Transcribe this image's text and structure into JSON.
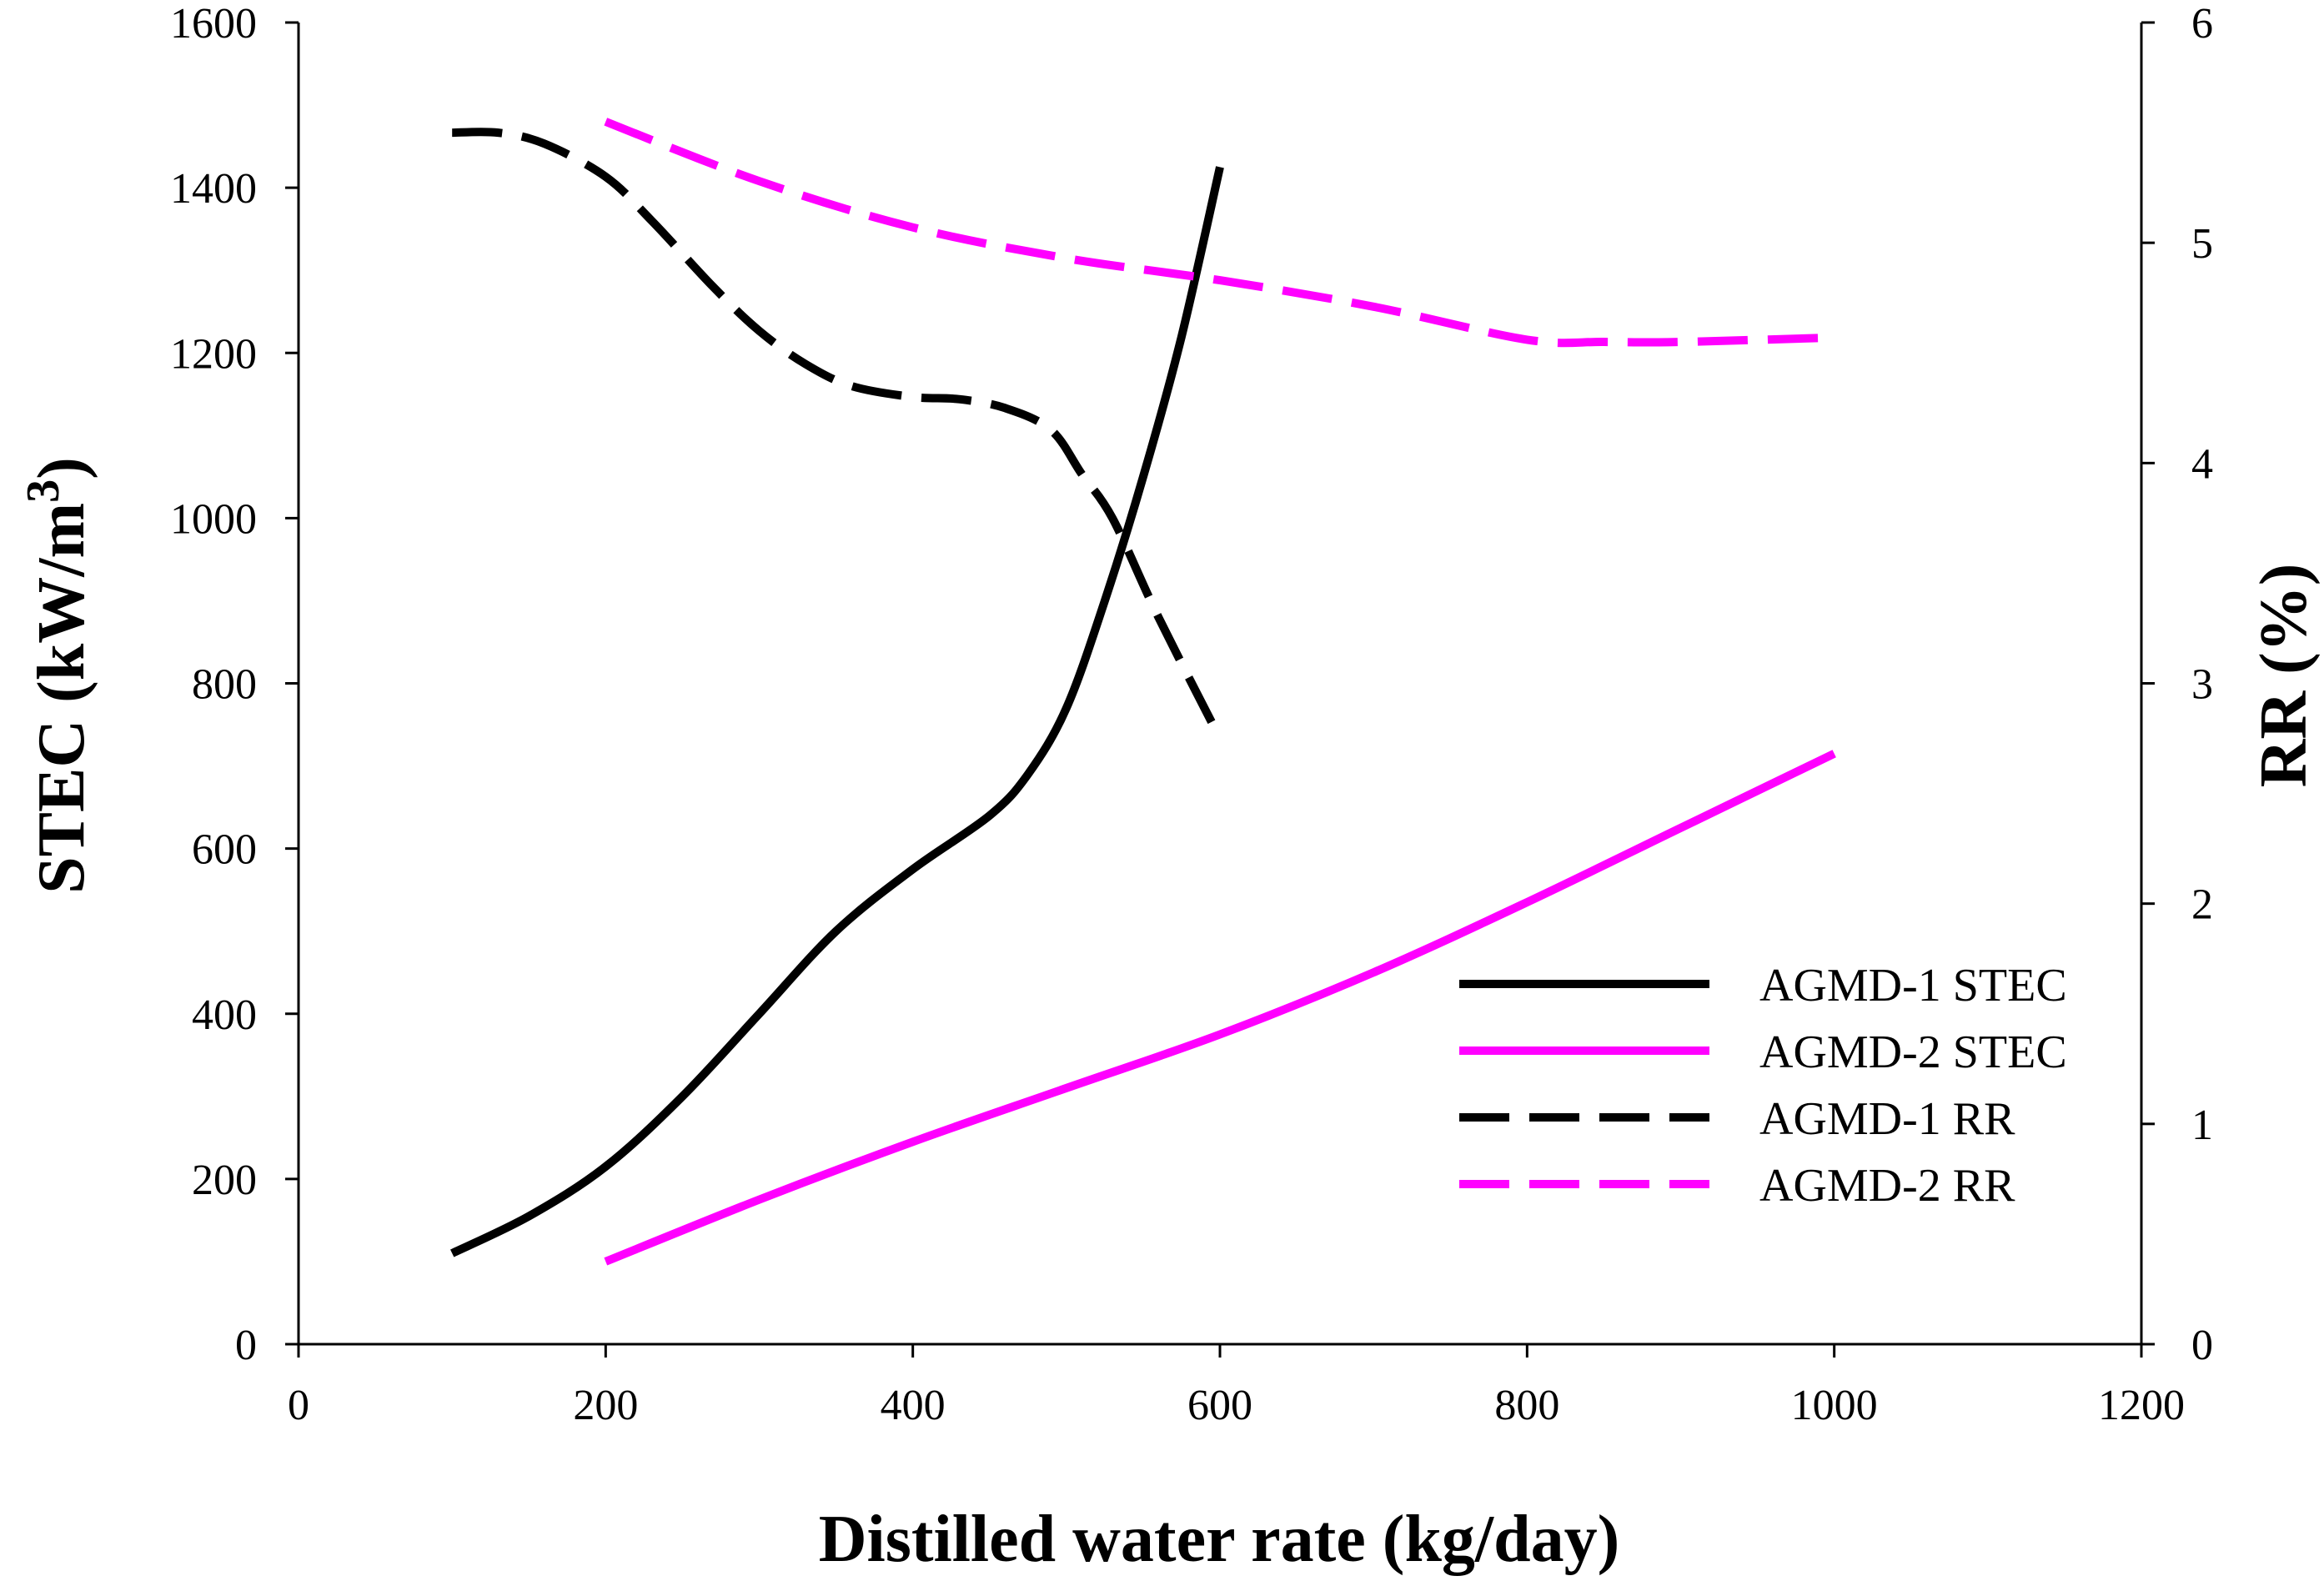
{
  "chart_data": {
    "type": "line",
    "title": "",
    "xlabel": "Distilled water rate (kg/day)",
    "ylabel_left": "STEC (kW/m",
    "ylabel_left_sup": "3",
    "ylabel_left_close": ")",
    "ylabel_right": "RR (%)",
    "xlim": [
      0,
      1200
    ],
    "ylim_left": [
      0,
      1600
    ],
    "ylim_right": [
      0,
      6
    ],
    "x_ticks": [
      0,
      200,
      400,
      600,
      800,
      1000,
      1200
    ],
    "y_left_ticks": [
      0,
      200,
      400,
      600,
      800,
      1000,
      1200,
      1400,
      1600
    ],
    "y_right_ticks": [
      0,
      1,
      2,
      3,
      4,
      5,
      6
    ],
    "grid": false,
    "legend_position": "lower-right",
    "series": [
      {
        "name": "AGMD-1 STEC",
        "axis": "left",
        "color": "#000000",
        "dash": "solid",
        "x": [
          100,
          150,
          200,
          250,
          300,
          350,
          400,
          450,
          475,
          500,
          525,
          550,
          575,
          600
        ],
        "y": [
          110,
          155,
          215,
          300,
          400,
          500,
          575,
          640,
          690,
          770,
          900,
          1050,
          1220,
          1425
        ]
      },
      {
        "name": "AGMD-2 STEC",
        "axis": "left",
        "color": "#ff00ff",
        "dash": "solid",
        "x": [
          200,
          300,
          400,
          500,
          600,
          700,
          800,
          900,
          1000
        ],
        "y": [
          100,
          175,
          245,
          310,
          375,
          450,
          535,
          625,
          715
        ]
      },
      {
        "name": "AGMD-1 RR",
        "axis": "right",
        "color": "#000000",
        "dash": "dashed",
        "x": [
          100,
          130,
          160,
          200,
          230,
          270,
          300,
          330,
          360,
          400,
          430,
          460,
          490,
          510,
          530,
          560,
          600
        ],
        "y": [
          5.5,
          5.5,
          5.45,
          5.3,
          5.1,
          4.8,
          4.6,
          4.45,
          4.35,
          4.3,
          4.29,
          4.25,
          4.15,
          3.95,
          3.75,
          3.3,
          2.75
        ]
      },
      {
        "name": "AGMD-2 RR",
        "axis": "right",
        "color": "#ff00ff",
        "dash": "dashed",
        "x": [
          200,
          300,
          400,
          500,
          600,
          700,
          800,
          850,
          900,
          1000
        ],
        "y": [
          5.55,
          5.28,
          5.07,
          4.93,
          4.83,
          4.71,
          4.56,
          4.55,
          4.55,
          4.57
        ]
      }
    ]
  }
}
